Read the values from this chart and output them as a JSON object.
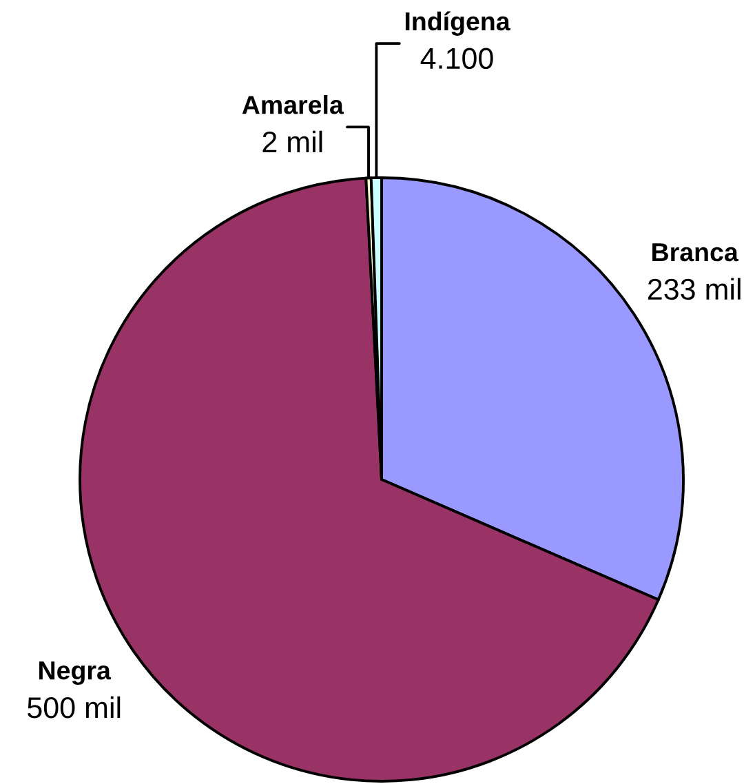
{
  "chart_data": {
    "type": "pie",
    "categories": [
      "Branca",
      "Negra",
      "Amarela",
      "Indígena"
    ],
    "values": [
      233,
      500,
      2,
      4.1
    ],
    "value_labels": [
      "233 mil",
      "500 mil",
      "2 mil",
      "4.100"
    ],
    "colors": [
      "#9999ff",
      "#993366",
      "#ffffcc",
      "#ccffff"
    ]
  }
}
